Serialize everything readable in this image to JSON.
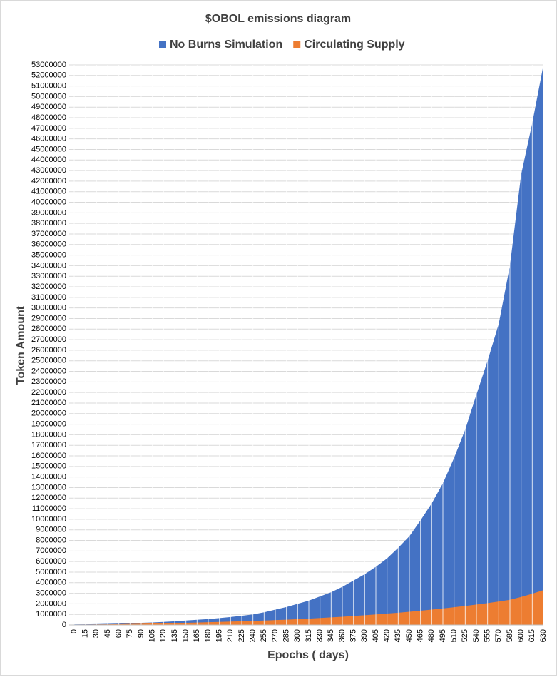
{
  "chart_data": {
    "type": "area",
    "title": "$OBOL emissions diagram",
    "x_label": "Epochs ( days)",
    "y_label": "Token Amount",
    "x": [
      0,
      15,
      30,
      45,
      60,
      75,
      90,
      105,
      120,
      135,
      150,
      165,
      180,
      195,
      210,
      225,
      240,
      255,
      270,
      285,
      300,
      315,
      330,
      345,
      360,
      375,
      390,
      405,
      420,
      435,
      450,
      465,
      480,
      495,
      510,
      525,
      540,
      555,
      570,
      585,
      600,
      615,
      630
    ],
    "xlim": [
      0,
      630
    ],
    "ylim": [
      0,
      53000000
    ],
    "yticks": [
      0,
      1000000,
      2000000,
      3000000,
      4000000,
      5000000,
      6000000,
      7000000,
      8000000,
      9000000,
      10000000,
      11000000,
      12000000,
      13000000,
      14000000,
      15000000,
      16000000,
      17000000,
      18000000,
      19000000,
      20000000,
      21000000,
      22000000,
      23000000,
      24000000,
      25000000,
      26000000,
      27000000,
      28000000,
      29000000,
      30000000,
      31000000,
      32000000,
      33000000,
      34000000,
      35000000,
      36000000,
      37000000,
      38000000,
      39000000,
      40000000,
      41000000,
      42000000,
      43000000,
      44000000,
      45000000,
      46000000,
      47000000,
      48000000,
      49000000,
      50000000,
      51000000,
      52000000,
      53000000
    ],
    "grid": true,
    "legend": "top",
    "series": [
      {
        "name": "No Burns Simulation",
        "color": "#4472c4",
        "values": [
          50000,
          62000,
          80000,
          100000,
          130000,
          160000,
          200000,
          240000,
          290000,
          350000,
          420000,
          490000,
          560000,
          650000,
          750000,
          870000,
          1000000,
          1200000,
          1450000,
          1700000,
          2000000,
          2300000,
          2700000,
          3100000,
          3600000,
          4200000,
          4800000,
          5500000,
          6300000,
          7300000,
          8400000,
          9900000,
          11500000,
          13400000,
          15800000,
          18500000,
          21800000,
          25000000,
          28500000,
          34000000,
          42600000,
          47500000,
          53000000
        ]
      },
      {
        "name": "Circulating Supply",
        "color": "#ed7d31",
        "values": [
          30000,
          40000,
          50000,
          60000,
          80000,
          100000,
          120000,
          140000,
          160000,
          180000,
          200000,
          230000,
          260000,
          290000,
          320000,
          350000,
          380000,
          420000,
          460000,
          500000,
          550000,
          600000,
          660000,
          720000,
          780000,
          850000,
          920000,
          1000000,
          1080000,
          1160000,
          1250000,
          1350000,
          1450000,
          1560000,
          1680000,
          1800000,
          1930000,
          2070000,
          2220000,
          2380000,
          2650000,
          2950000,
          3300000
        ]
      }
    ]
  }
}
